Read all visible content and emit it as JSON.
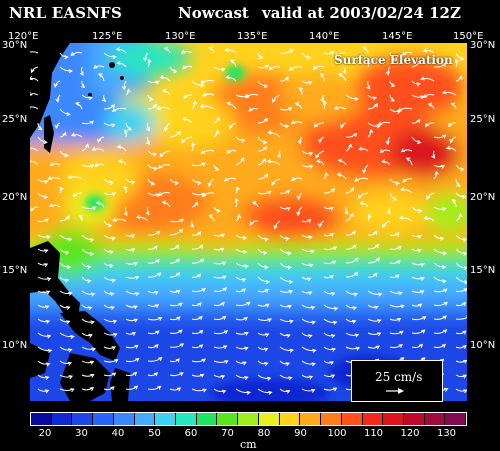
{
  "header": {
    "model_name": "NRL EASNFS",
    "product": "Nowcast",
    "valid_label": "valid at 2003/02/24 12Z"
  },
  "map": {
    "field_name": "Surface Elevation",
    "lon_labels": [
      "120°E",
      "125°E",
      "130°E",
      "135°E",
      "140°E",
      "145°E",
      "150°E"
    ],
    "lat_labels": [
      "30°N",
      "25°N",
      "20°N",
      "15°N",
      "10°N"
    ],
    "vector_scale_label": "25 cm/s",
    "land_color": "#000000"
  },
  "colorbar": {
    "units": "cm",
    "tick_labels": [
      "20",
      "30",
      "40",
      "50",
      "60",
      "70",
      "80",
      "90",
      "100",
      "110",
      "120",
      "130"
    ],
    "colors": [
      "#0a0aa0",
      "#0f28d2",
      "#1e46e6",
      "#2864f5",
      "#3c87ff",
      "#46aaff",
      "#3cd2f0",
      "#28e6be",
      "#1ee664",
      "#5ae61e",
      "#a0ee1e",
      "#e6f01e",
      "#ffd21e",
      "#ffaa1e",
      "#ff7d1e",
      "#ff501e",
      "#f5281e",
      "#dc141e",
      "#be0a28",
      "#a00a3c",
      "#820a50"
    ]
  }
}
